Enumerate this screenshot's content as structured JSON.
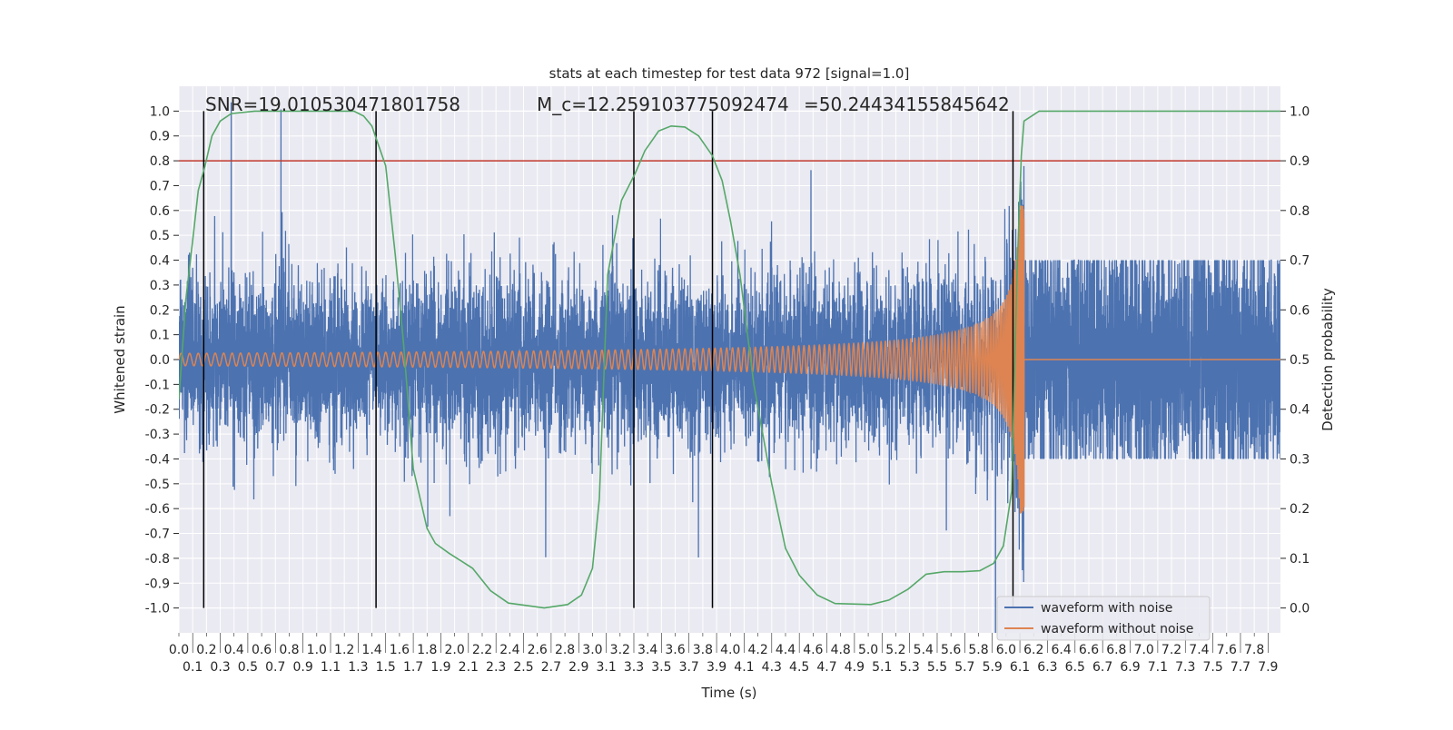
{
  "chart_data": {
    "type": "line",
    "title": "stats at each timestep for test data 972 [signal=1.0]",
    "xlabel": "Time (s)",
    "ylabel": "Whitened strain",
    "ylabel_right": "Detection probability",
    "xlim": [
      0.0,
      7.99
    ],
    "ylim": [
      -1.1,
      1.1
    ],
    "ylim_right": [
      -0.05,
      1.05
    ],
    "xticks": {
      "start": 0.0,
      "stop": 7.9,
      "step": 0.1
    },
    "yticks": {
      "start": -1.0,
      "stop": 1.0,
      "step": 0.1
    },
    "yticks_right": {
      "start": 0.0,
      "stop": 1.0,
      "step": 0.1
    },
    "grid": true,
    "legend_placement": "lower-right",
    "annotations": [
      "SNR=19.010530471801758",
      "M_c=12.259103775092474",
      "=50.24434155845642"
    ],
    "threshold_line": {
      "axis": "left",
      "y": 0.8,
      "color": "#c0392b"
    },
    "vertical_lines": {
      "x": [
        0.18,
        1.43,
        3.3,
        3.87,
        6.05
      ],
      "range_right": [
        0.0,
        1.0
      ],
      "color": "#000000"
    },
    "series": [
      {
        "name": "waveform with noise",
        "axis": "left",
        "color": "#4c72b0"
      },
      {
        "name": "waveform without noise",
        "axis": "left",
        "color": "#dd8452",
        "merger_time": 6.13
      },
      {
        "axis": "right",
        "color": "#55a868",
        "x": [
          0.0,
          0.05,
          0.1,
          0.14,
          0.19,
          0.24,
          0.3,
          0.38,
          0.55,
          1.27,
          1.34,
          1.4,
          1.45,
          1.5,
          1.57,
          1.63,
          1.7,
          1.8,
          1.86,
          1.96,
          2.13,
          2.26,
          2.39,
          2.65,
          2.82,
          2.92,
          3.0,
          3.05,
          3.11,
          3.21,
          3.31,
          3.38,
          3.48,
          3.57,
          3.67,
          3.77,
          3.87,
          3.94,
          4.0,
          4.07,
          4.17,
          4.3,
          4.4,
          4.5,
          4.63,
          4.76,
          5.02,
          5.15,
          5.29,
          5.42,
          5.55,
          5.68,
          5.81,
          5.91,
          5.98,
          6.04,
          6.08,
          6.11,
          6.13,
          6.24,
          7.99
        ],
        "y": [
          0.42,
          0.62,
          0.74,
          0.84,
          0.89,
          0.95,
          0.98,
          0.995,
          1.0,
          1.0,
          0.99,
          0.97,
          0.93,
          0.89,
          0.71,
          0.53,
          0.28,
          0.16,
          0.13,
          0.11,
          0.08,
          0.035,
          0.01,
          0.0,
          0.007,
          0.026,
          0.08,
          0.22,
          0.67,
          0.82,
          0.875,
          0.92,
          0.96,
          0.97,
          0.968,
          0.95,
          0.91,
          0.86,
          0.78,
          0.67,
          0.45,
          0.25,
          0.12,
          0.066,
          0.026,
          0.009,
          0.007,
          0.016,
          0.038,
          0.068,
          0.073,
          0.073,
          0.075,
          0.09,
          0.125,
          0.235,
          0.68,
          0.91,
          0.98,
          1.0,
          1.0
        ]
      }
    ],
    "colors": {
      "background": "#eaeaf2",
      "grid": "#ffffff"
    }
  }
}
